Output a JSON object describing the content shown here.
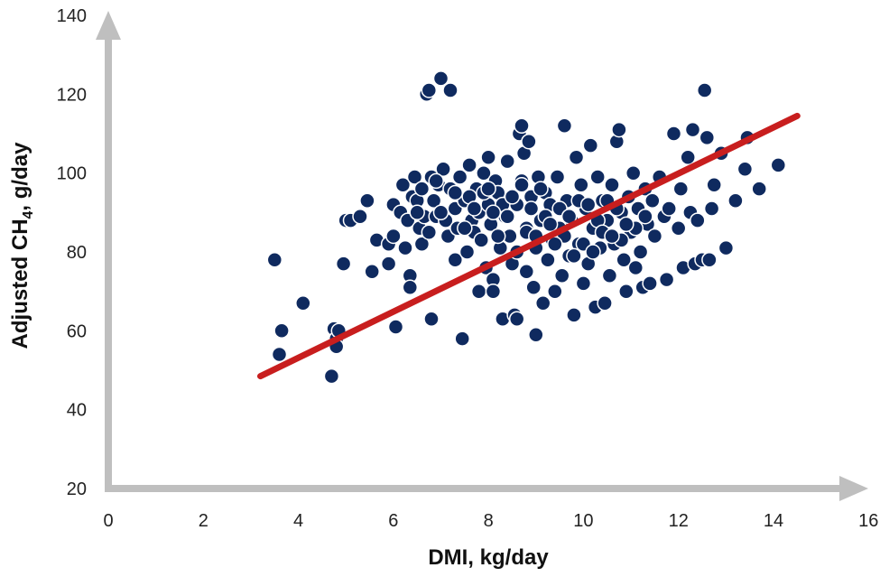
{
  "chart_data": {
    "type": "scatter",
    "xlabel": "DMI, kg/day",
    "ylabel_main": "Adjusted CH",
    "ylabel_sub": "4",
    "ylabel_rest": ", g/day",
    "xlim": [
      0,
      16
    ],
    "ylim": [
      20,
      140
    ],
    "xticks": [
      0,
      2,
      4,
      6,
      8,
      10,
      12,
      14,
      16
    ],
    "yticks": [
      20,
      40,
      60,
      80,
      100,
      120,
      140
    ],
    "grid": false,
    "colors": {
      "points": "#0f2a5f",
      "trend": "#c81e1e",
      "axis": "#bfbfbf"
    },
    "trendline": {
      "x": [
        3.2,
        14.5
      ],
      "y": [
        48.5,
        114.5
      ]
    },
    "points": [
      [
        3.5,
        78
      ],
      [
        3.6,
        54
      ],
      [
        3.65,
        60
      ],
      [
        4.1,
        67
      ],
      [
        4.7,
        48.5
      ],
      [
        4.75,
        60.5
      ],
      [
        4.8,
        58
      ],
      [
        4.8,
        56
      ],
      [
        4.85,
        60
      ],
      [
        4.95,
        77
      ],
      [
        5.0,
        88
      ],
      [
        5.1,
        88
      ],
      [
        5.3,
        89
      ],
      [
        5.45,
        93
      ],
      [
        5.55,
        75
      ],
      [
        5.65,
        83
      ],
      [
        5.9,
        77
      ],
      [
        5.9,
        82
      ],
      [
        6.0,
        92
      ],
      [
        6.0,
        84
      ],
      [
        6.05,
        61
      ],
      [
        6.15,
        90
      ],
      [
        6.2,
        97
      ],
      [
        6.25,
        81
      ],
      [
        6.3,
        88
      ],
      [
        6.35,
        74
      ],
      [
        6.35,
        71
      ],
      [
        6.4,
        94
      ],
      [
        6.45,
        99
      ],
      [
        6.5,
        93
      ],
      [
        6.55,
        86
      ],
      [
        6.6,
        82
      ],
      [
        6.6,
        96
      ],
      [
        6.65,
        89
      ],
      [
        6.7,
        120
      ],
      [
        6.75,
        121
      ],
      [
        6.75,
        85
      ],
      [
        6.8,
        63
      ],
      [
        6.8,
        99
      ],
      [
        6.85,
        93
      ],
      [
        6.9,
        89
      ],
      [
        6.95,
        97
      ],
      [
        7.0,
        124
      ],
      [
        7.05,
        101
      ],
      [
        7.1,
        88
      ],
      [
        7.15,
        84
      ],
      [
        7.2,
        121
      ],
      [
        7.2,
        96
      ],
      [
        7.3,
        91
      ],
      [
        7.3,
        78
      ],
      [
        7.35,
        86
      ],
      [
        7.4,
        99
      ],
      [
        7.45,
        58
      ],
      [
        7.5,
        93
      ],
      [
        7.55,
        80
      ],
      [
        7.6,
        102
      ],
      [
        7.65,
        88
      ],
      [
        7.7,
        85
      ],
      [
        7.75,
        96
      ],
      [
        7.8,
        70
      ],
      [
        7.8,
        90
      ],
      [
        7.85,
        83
      ],
      [
        7.9,
        100
      ],
      [
        7.95,
        76
      ],
      [
        8.0,
        104
      ],
      [
        8.0,
        92
      ],
      [
        8.05,
        87
      ],
      [
        8.1,
        73
      ],
      [
        8.1,
        70
      ],
      [
        8.15,
        98
      ],
      [
        8.2,
        95
      ],
      [
        8.25,
        81
      ],
      [
        8.3,
        63
      ],
      [
        8.35,
        89
      ],
      [
        8.4,
        103
      ],
      [
        8.45,
        84
      ],
      [
        8.5,
        77
      ],
      [
        8.55,
        64
      ],
      [
        8.6,
        63
      ],
      [
        8.6,
        92
      ],
      [
        8.65,
        110
      ],
      [
        8.7,
        112
      ],
      [
        8.7,
        98
      ],
      [
        8.75,
        105
      ],
      [
        8.8,
        75
      ],
      [
        8.8,
        86
      ],
      [
        8.85,
        108
      ],
      [
        8.9,
        94
      ],
      [
        8.95,
        71
      ],
      [
        9.0,
        59
      ],
      [
        9.0,
        81
      ],
      [
        9.05,
        99
      ],
      [
        9.1,
        88
      ],
      [
        9.15,
        67
      ],
      [
        9.2,
        95
      ],
      [
        9.25,
        78
      ],
      [
        9.3,
        92
      ],
      [
        9.35,
        83
      ],
      [
        9.4,
        70
      ],
      [
        9.45,
        99
      ],
      [
        9.5,
        86
      ],
      [
        9.55,
        74
      ],
      [
        9.6,
        112
      ],
      [
        9.65,
        93
      ],
      [
        9.7,
        79
      ],
      [
        9.75,
        88
      ],
      [
        9.8,
        64
      ],
      [
        9.85,
        104
      ],
      [
        9.9,
        82
      ],
      [
        9.95,
        97
      ],
      [
        10.0,
        72
      ],
      [
        10.05,
        91
      ],
      [
        10.1,
        77
      ],
      [
        10.15,
        107
      ],
      [
        10.2,
        86
      ],
      [
        10.25,
        66
      ],
      [
        10.3,
        99
      ],
      [
        10.35,
        81
      ],
      [
        10.4,
        93
      ],
      [
        10.45,
        67
      ],
      [
        10.5,
        88
      ],
      [
        10.55,
        74
      ],
      [
        10.6,
        97
      ],
      [
        10.65,
        82
      ],
      [
        10.7,
        108
      ],
      [
        10.75,
        111
      ],
      [
        10.8,
        90
      ],
      [
        10.85,
        78
      ],
      [
        10.9,
        70
      ],
      [
        10.95,
        94
      ],
      [
        11.0,
        85
      ],
      [
        11.05,
        100
      ],
      [
        11.1,
        76
      ],
      [
        11.15,
        91
      ],
      [
        11.2,
        80
      ],
      [
        11.25,
        71
      ],
      [
        11.3,
        96
      ],
      [
        11.35,
        87
      ],
      [
        11.4,
        72
      ],
      [
        11.45,
        93
      ],
      [
        11.5,
        84
      ],
      [
        11.6,
        99
      ],
      [
        11.7,
        89
      ],
      [
        11.75,
        73
      ],
      [
        11.8,
        91
      ],
      [
        11.9,
        110
      ],
      [
        12.0,
        86
      ],
      [
        12.05,
        96
      ],
      [
        12.1,
        76
      ],
      [
        12.2,
        104
      ],
      [
        12.25,
        90
      ],
      [
        12.3,
        111
      ],
      [
        12.35,
        77
      ],
      [
        12.4,
        88
      ],
      [
        12.5,
        78
      ],
      [
        12.55,
        121
      ],
      [
        12.6,
        109
      ],
      [
        12.65,
        78
      ],
      [
        12.7,
        91
      ],
      [
        12.75,
        97
      ],
      [
        12.9,
        105
      ],
      [
        13.0,
        81
      ],
      [
        13.2,
        93
      ],
      [
        13.4,
        101
      ],
      [
        13.45,
        109
      ],
      [
        13.7,
        96
      ],
      [
        14.1,
        102
      ],
      [
        7.9,
        95
      ],
      [
        8.3,
        92
      ],
      [
        8.7,
        97
      ],
      [
        9.1,
        96
      ],
      [
        9.5,
        91
      ],
      [
        9.9,
        93
      ],
      [
        10.3,
        88
      ],
      [
        10.7,
        91
      ],
      [
        11.1,
        86
      ],
      [
        7.6,
        94
      ],
      [
        8.0,
        96
      ],
      [
        8.4,
        89
      ],
      [
        8.8,
        85
      ],
      [
        9.2,
        89
      ],
      [
        9.6,
        84
      ],
      [
        10.0,
        82
      ],
      [
        10.4,
        85
      ],
      [
        10.8,
        83
      ],
      [
        6.9,
        98
      ],
      [
        7.3,
        95
      ],
      [
        7.7,
        91
      ],
      [
        8.1,
        90
      ],
      [
        8.5,
        94
      ],
      [
        8.9,
        91
      ],
      [
        9.3,
        87
      ],
      [
        9.7,
        89
      ],
      [
        10.1,
        92
      ],
      [
        10.5,
        93
      ],
      [
        10.9,
        87
      ],
      [
        11.3,
        89
      ],
      [
        6.5,
        90
      ],
      [
        7.0,
        90
      ],
      [
        7.5,
        86
      ],
      [
        8.2,
        84
      ],
      [
        8.6,
        80
      ],
      [
        9.0,
        84
      ],
      [
        9.4,
        82
      ],
      [
        9.8,
        79
      ],
      [
        10.2,
        80
      ],
      [
        10.6,
        84
      ]
    ]
  }
}
